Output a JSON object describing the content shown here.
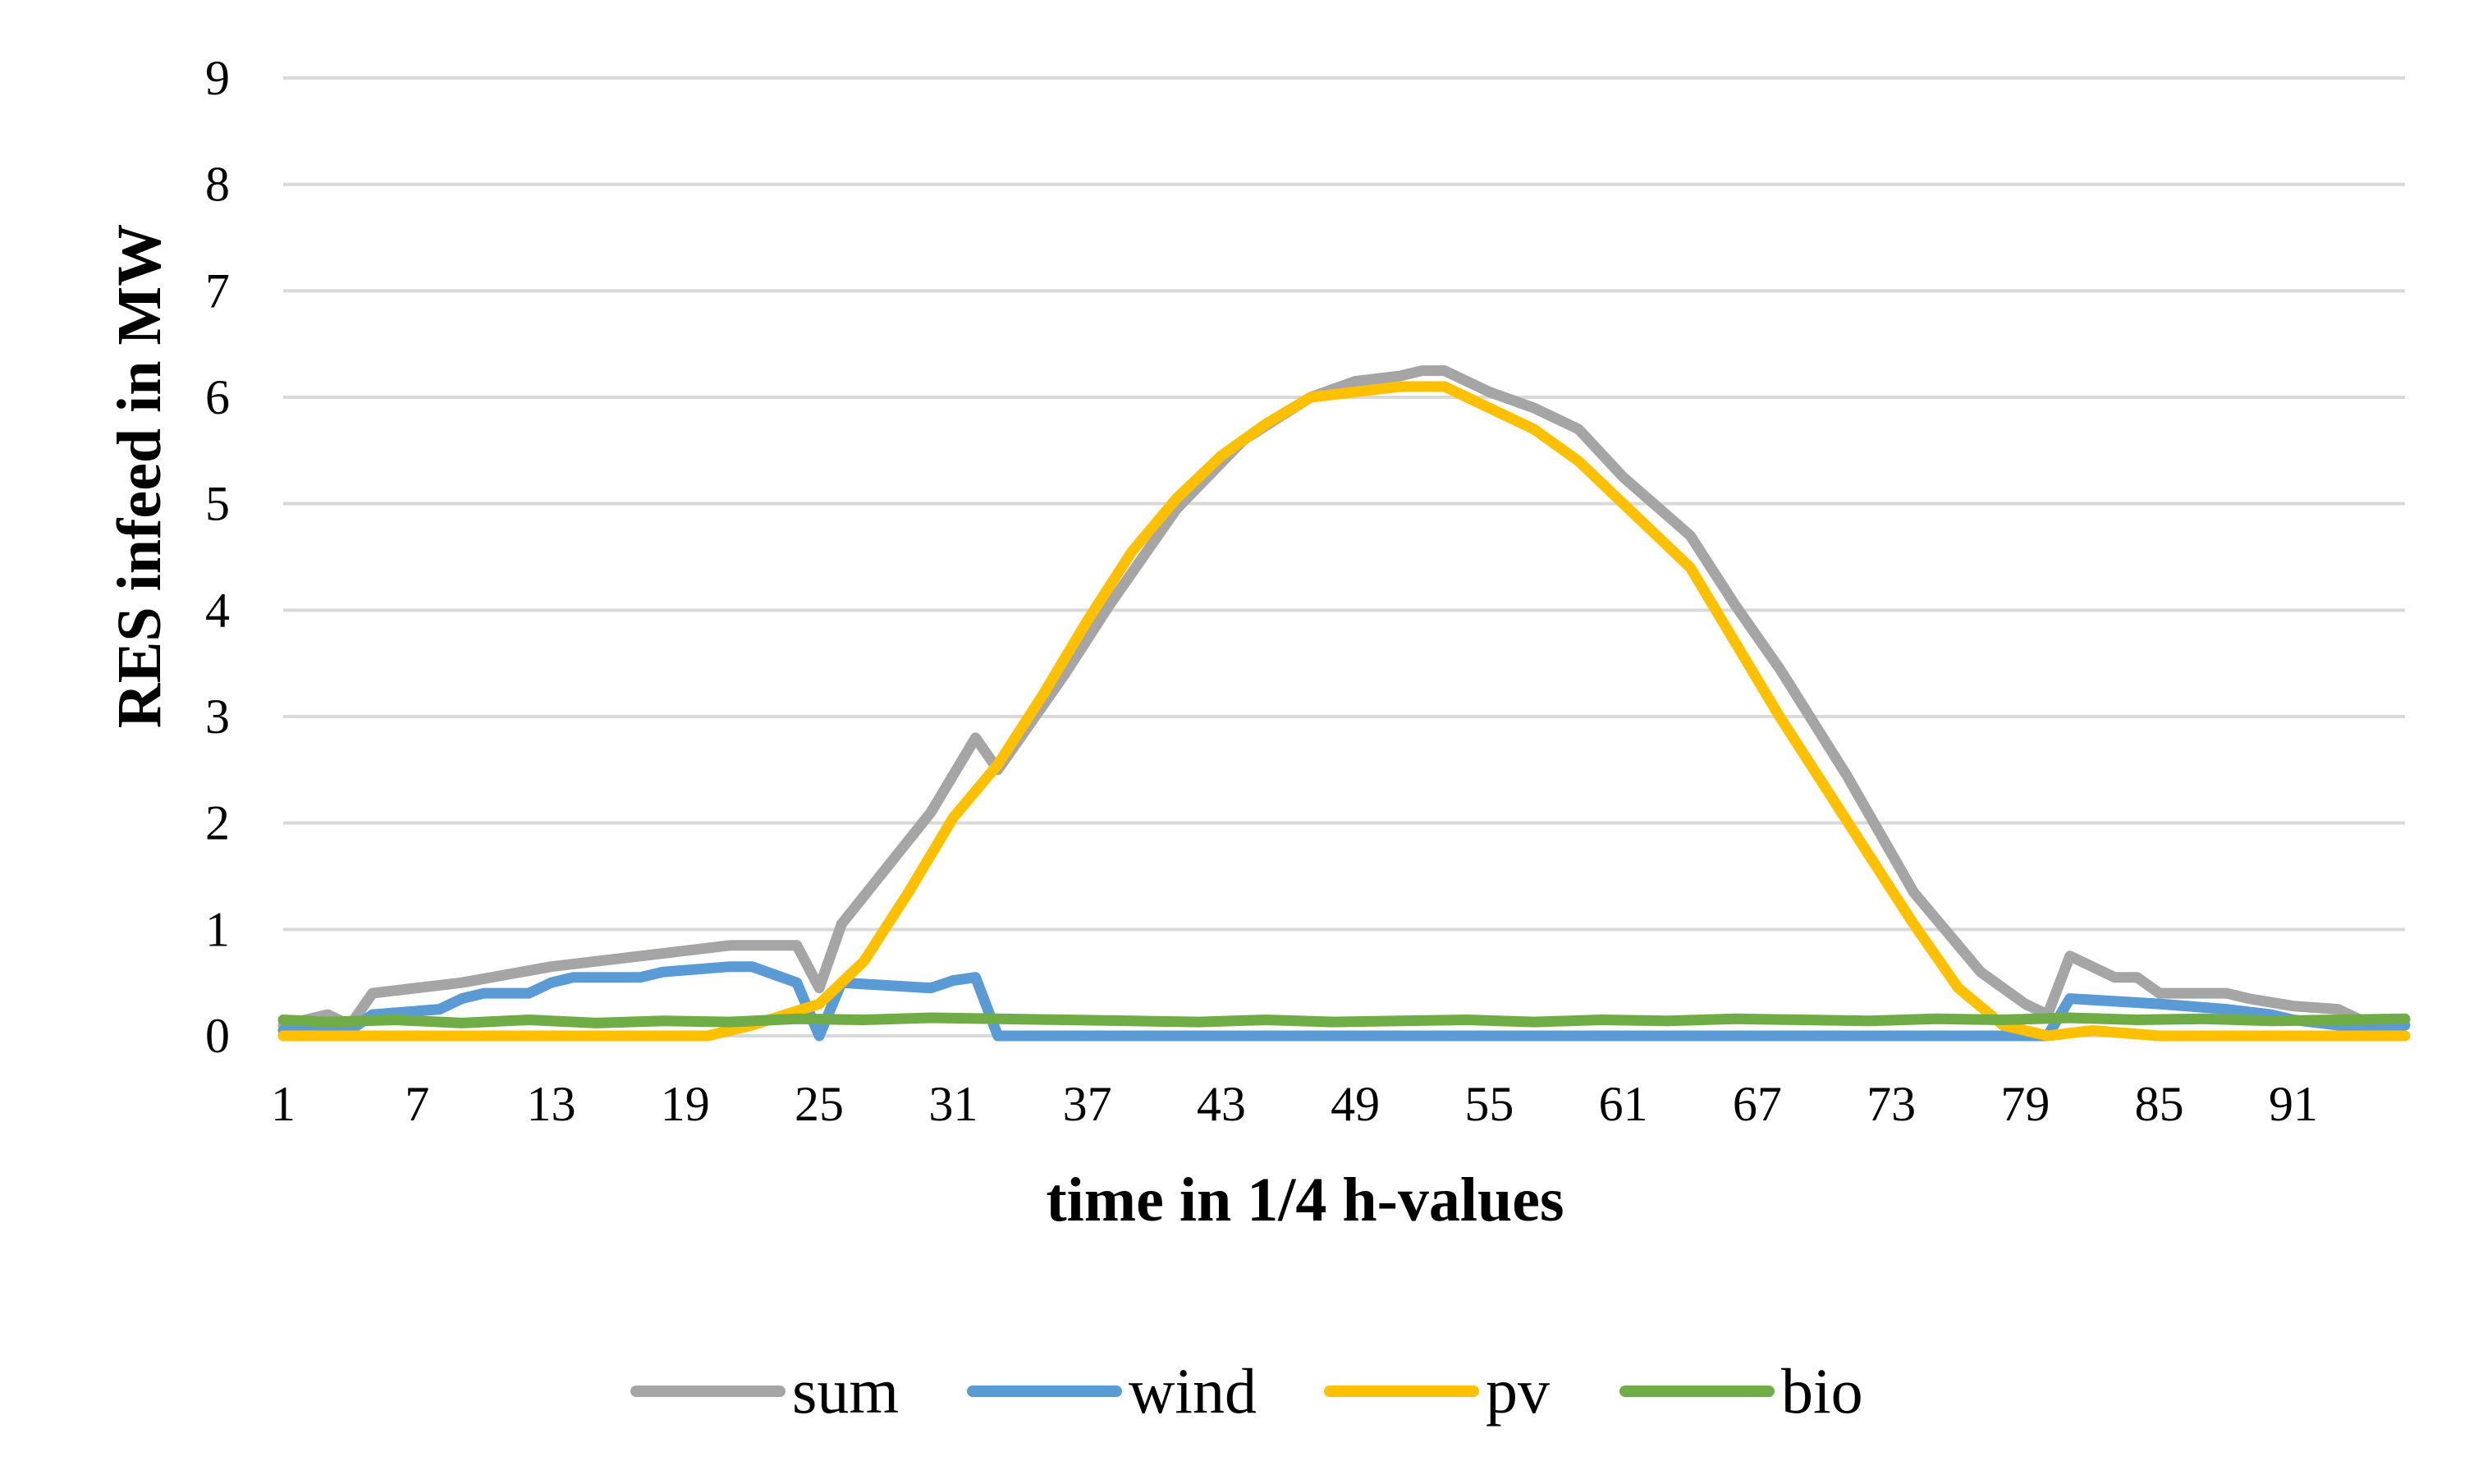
{
  "chart_data": {
    "type": "line",
    "title": "",
    "xlabel": "time in 1/4 h-values",
    "ylabel": "RES infeed in MW",
    "ylim": [
      0,
      9
    ],
    "yticks": [
      0,
      1,
      2,
      3,
      4,
      5,
      6,
      7,
      8,
      9
    ],
    "xticks": [
      1,
      7,
      13,
      19,
      25,
      31,
      37,
      43,
      49,
      55,
      61,
      67,
      73,
      79,
      85,
      91
    ],
    "x_range": [
      1,
      96
    ],
    "grid": true,
    "legend_position": "bottom",
    "series": [
      {
        "name": "sum",
        "color": "#a5a5a5",
        "x": [
          1,
          3,
          4,
          5,
          9,
          13,
          17,
          21,
          24,
          25,
          26,
          30,
          32,
          33,
          36,
          38,
          41,
          44,
          47,
          49,
          51,
          52,
          53,
          55,
          57,
          59,
          61,
          64,
          66,
          68,
          71,
          74,
          77,
          79,
          80,
          81,
          83,
          84,
          85,
          88,
          89,
          91,
          93,
          94,
          96
        ],
        "values": [
          0.1,
          0.2,
          0.1,
          0.4,
          0.5,
          0.65,
          0.75,
          0.85,
          0.85,
          0.45,
          1.05,
          2.1,
          2.8,
          2.5,
          3.4,
          4.05,
          4.95,
          5.6,
          6.0,
          6.15,
          6.2,
          6.25,
          6.25,
          6.05,
          5.9,
          5.7,
          5.25,
          4.7,
          4.05,
          3.45,
          2.45,
          1.35,
          0.6,
          0.3,
          0.2,
          0.75,
          0.55,
          0.55,
          0.4,
          0.4,
          0.35,
          0.28,
          0.25,
          0.15,
          0.15
        ]
      },
      {
        "name": "wind",
        "color": "#5b9bd5",
        "x": [
          1,
          4,
          5,
          8,
          9,
          10,
          12,
          13,
          14,
          17,
          18,
          21,
          22,
          24,
          25,
          26,
          30,
          31,
          32,
          33,
          80,
          81,
          85,
          88,
          90,
          91,
          93,
          96
        ],
        "values": [
          0.05,
          0.05,
          0.2,
          0.25,
          0.35,
          0.4,
          0.4,
          0.5,
          0.55,
          0.55,
          0.6,
          0.65,
          0.65,
          0.5,
          0.0,
          0.5,
          0.45,
          0.52,
          0.55,
          0.0,
          0.0,
          0.35,
          0.3,
          0.25,
          0.2,
          0.15,
          0.1,
          0.1
        ]
      },
      {
        "name": "pv",
        "color": "#ffc000",
        "x": [
          1,
          20,
          22,
          25,
          27,
          29,
          31,
          33,
          35,
          37,
          39,
          41,
          43,
          45,
          47,
          49,
          51,
          53,
          55,
          57,
          59,
          61,
          64,
          66,
          68,
          70,
          72,
          74,
          76,
          78,
          80,
          82,
          85,
          96
        ],
        "values": [
          0.0,
          0.0,
          0.1,
          0.3,
          0.7,
          1.35,
          2.05,
          2.55,
          3.2,
          3.9,
          4.55,
          5.05,
          5.45,
          5.75,
          6.0,
          6.05,
          6.1,
          6.1,
          5.9,
          5.7,
          5.4,
          5.0,
          4.4,
          3.7,
          3.0,
          2.35,
          1.7,
          1.05,
          0.45,
          0.1,
          0.0,
          0.05,
          0.0,
          0.0
        ]
      },
      {
        "name": "bio",
        "color": "#70ad47",
        "x": [
          1,
          3,
          6,
          9,
          12,
          15,
          18,
          21,
          24,
          27,
          30,
          33,
          36,
          39,
          42,
          45,
          48,
          51,
          54,
          57,
          60,
          63,
          66,
          69,
          72,
          75,
          78,
          81,
          84,
          87,
          90,
          93,
          96
        ],
        "values": [
          0.15,
          0.13,
          0.15,
          0.12,
          0.15,
          0.12,
          0.14,
          0.13,
          0.16,
          0.15,
          0.17,
          0.16,
          0.15,
          0.14,
          0.13,
          0.15,
          0.13,
          0.14,
          0.15,
          0.13,
          0.15,
          0.14,
          0.16,
          0.15,
          0.14,
          0.16,
          0.15,
          0.17,
          0.15,
          0.16,
          0.14,
          0.15,
          0.16
        ]
      }
    ]
  }
}
